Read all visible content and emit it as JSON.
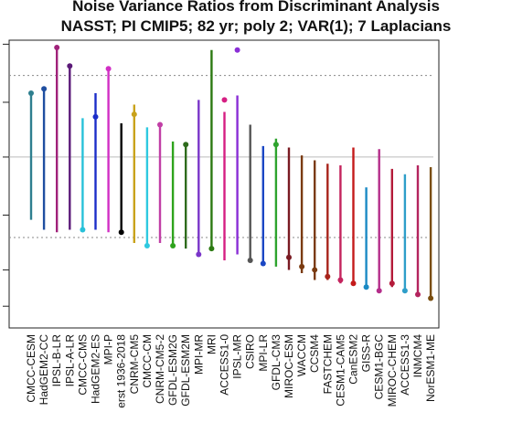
{
  "title": "Noise Variance Ratios from Discriminant Analysis",
  "subtitle": "NASST; PI CMIP5; 82 yr; poly 2; VAR(1); 7 Laplacians",
  "chart_data": {
    "type": "lollipop",
    "title": "Noise Variance Ratios from Discriminant Analysis",
    "subtitle": "NASST; PI CMIP5; 82 yr; poly 2; VAR(1); 7 Laplacians",
    "xlabel": "",
    "ylabel": "",
    "ylim": [
      0.35,
      2.05
    ],
    "log_scale_y": true,
    "reference_lines": [
      {
        "value": 1.0,
        "style": "solid",
        "color": "#bbbbbb"
      },
      {
        "value": 1.65,
        "style": "dotted",
        "color": "#888888"
      },
      {
        "value": 0.61,
        "style": "dotted",
        "color": "#888888"
      }
    ],
    "categories": [
      "CMCC-CESM",
      "HadGEM2-CC",
      "IPSL-B-LR",
      "IPSL-A-LR",
      "CMCC-CMS",
      "HadGEM2-ES",
      "MPI-P",
      "erst 1936-2018",
      "CNRM-CM5",
      "CMCC-CM",
      "CNRM-CM5-2",
      "GFDL-ESM2G",
      "GFDL-ESM2M",
      "MPI-MR",
      "MRI",
      "ACCESS1-0",
      "IPSL-MR",
      "CSIRO",
      "MPI-LR",
      "GFDL-CM3",
      "MIROC-ESM",
      "WACCM",
      "CCSM4",
      "FASTCHEM",
      "CESM1-CAM5",
      "CanESM2",
      "GISS-R",
      "CESM1-BGC",
      "MIROC-CHEM",
      "ACCESS1-3",
      "INMCM4",
      "NorESM1-ME"
    ],
    "values": [
      1.48,
      1.52,
      1.96,
      1.75,
      0.64,
      1.28,
      1.72,
      0.63,
      1.3,
      0.58,
      1.22,
      0.58,
      1.08,
      0.55,
      0.57,
      1.42,
      1.93,
      0.53,
      0.52,
      1.08,
      0.54,
      0.51,
      0.5,
      0.48,
      0.47,
      0.46,
      0.45,
      0.44,
      0.46,
      0.44,
      0.43,
      0.42
    ],
    "tops": [
      1.48,
      1.52,
      1.96,
      1.75,
      1.27,
      1.48,
      1.72,
      1.23,
      1.38,
      1.2,
      1.22,
      1.1,
      1.08,
      1.42,
      1.93,
      1.32,
      1.46,
      1.22,
      1.07,
      1.12,
      1.06,
      1.01,
      0.98,
      0.96,
      0.95,
      1.06,
      0.83,
      1.05,
      0.93,
      0.9,
      0.95,
      0.94
    ],
    "bottoms": [
      0.68,
      0.64,
      0.63,
      0.64,
      0.64,
      0.64,
      0.63,
      0.63,
      0.59,
      0.58,
      0.59,
      0.58,
      0.57,
      0.55,
      0.57,
      0.53,
      0.55,
      0.53,
      0.52,
      0.51,
      0.5,
      0.49,
      0.47,
      0.47,
      0.46,
      0.46,
      0.45,
      0.44,
      0.45,
      0.44,
      0.43,
      0.42
    ],
    "colors": [
      "#2e7f8f",
      "#1f4ea0",
      "#a0227a",
      "#5b1a78",
      "#27c1d9",
      "#1c2ec9",
      "#d12fc4",
      "#000000",
      "#c9a21b",
      "#2ec9e0",
      "#c13fa6",
      "#2ea31c",
      "#2e6b1c",
      "#7a35c9",
      "#2c7a12",
      "#d61f83",
      "#8a2ed6",
      "#555555",
      "#1b47c4",
      "#2ea32e",
      "#7a1a22",
      "#7a3a10",
      "#7a3a10",
      "#a8241b",
      "#c4245e",
      "#c41b1b",
      "#1b8ac4",
      "#b42d8a",
      "#b41b3a",
      "#2e9ec9",
      "#b4245e",
      "#7a4e10"
    ]
  }
}
